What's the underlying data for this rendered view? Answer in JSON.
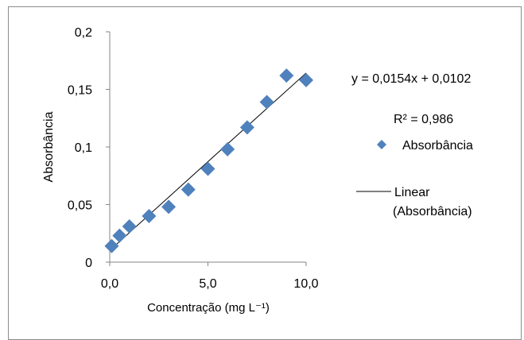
{
  "chart_data": {
    "type": "scatter",
    "xlabel": "Concentração (mg L⁻¹)",
    "ylabel": "Absorbância",
    "xlim": [
      0,
      10
    ],
    "ylim": [
      0,
      0.2
    ],
    "x_ticks": [
      "0,0",
      "5,0",
      "10,0"
    ],
    "x_tick_values": [
      0,
      5,
      10
    ],
    "y_ticks": [
      "0",
      "0,05",
      "0,1",
      "0,15",
      "0,2"
    ],
    "y_tick_values": [
      0,
      0.05,
      0.1,
      0.15,
      0.2
    ],
    "grid": false,
    "legend_position": "right",
    "series": [
      {
        "name": "Absorbância",
        "type": "scatter",
        "marker": "diamond",
        "color": "#4f81bd",
        "x": [
          0.1,
          0.5,
          1.0,
          2.0,
          3.0,
          4.0,
          5.0,
          6.0,
          7.0,
          8.0,
          9.0,
          10.0
        ],
        "y": [
          0.014,
          0.023,
          0.031,
          0.04,
          0.048,
          0.063,
          0.081,
          0.098,
          0.117,
          0.139,
          0.162,
          0.158
        ]
      },
      {
        "name": "Linear (Absorbância)",
        "type": "line",
        "color": "#000000",
        "x": [
          0,
          10
        ],
        "y": [
          0.0102,
          0.1642
        ]
      }
    ],
    "annotations": {
      "equation": "y = 0,0154x + 0,0102",
      "r_squared": "R² = 0,986"
    }
  }
}
